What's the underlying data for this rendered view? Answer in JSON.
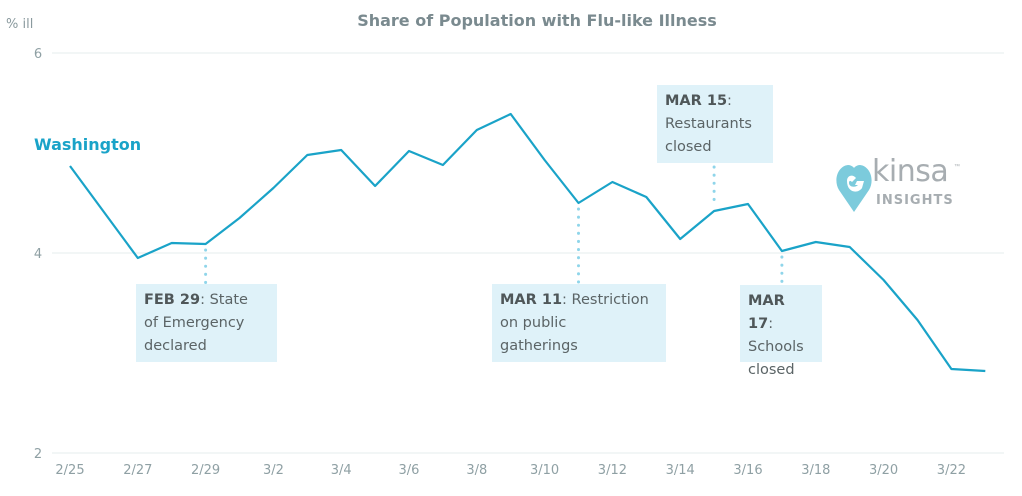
{
  "chart_data": {
    "type": "line",
    "title": "Share of Population with Flu-like Illness",
    "ylabel": "% ill",
    "xlabel": "",
    "ylim": [
      2,
      6
    ],
    "yticks": [
      2,
      4,
      6
    ],
    "grid": true,
    "x": [
      "2/25",
      "2/26",
      "2/27",
      "2/28",
      "2/29",
      "3/1",
      "3/2",
      "3/3",
      "3/4",
      "3/5",
      "3/6",
      "3/7",
      "3/8",
      "3/9",
      "3/10",
      "3/11",
      "3/12",
      "3/13",
      "3/14",
      "3/15",
      "3/16",
      "3/17",
      "3/18",
      "3/19",
      "3/20",
      "3/21",
      "3/22",
      "3/23"
    ],
    "xtick_labels": [
      "2/25",
      "2/27",
      "2/29",
      "3/2",
      "3/4",
      "3/6",
      "3/8",
      "3/10",
      "3/12",
      "3/14",
      "3/16",
      "3/18",
      "3/20",
      "3/22"
    ],
    "series": [
      {
        "name": "Washington",
        "color": "#1aa3c8",
        "values": [
          4.87,
          4.41,
          3.95,
          4.1,
          4.09,
          4.35,
          4.65,
          4.98,
          5.03,
          4.67,
          5.02,
          4.88,
          5.23,
          5.39,
          4.93,
          4.5,
          4.71,
          4.56,
          4.14,
          4.42,
          4.49,
          4.02,
          4.11,
          4.06,
          3.73,
          3.33,
          2.84,
          2.82
        ]
      }
    ],
    "annotations": [
      {
        "date": "2/29",
        "bold": "FEB 29",
        "text": ": State",
        "lines": [
          "of Emergency",
          "declared"
        ],
        "position": "below"
      },
      {
        "date": "3/11",
        "bold": "MAR 11",
        "text": ": Restriction",
        "lines": [
          "on public",
          "gatherings"
        ],
        "position": "below"
      },
      {
        "date": "3/15",
        "bold": "MAR 15",
        "text": ":",
        "lines": [
          "Restaurants",
          "closed"
        ],
        "position": "above"
      },
      {
        "date": "3/17",
        "bold": "MAR 17",
        "text": ":",
        "lines": [
          "Schools",
          "closed"
        ],
        "position": "below"
      }
    ],
    "annotation_color": "#dff2f9",
    "legend": "series label at top-left"
  },
  "logo": {
    "word": "kinsa",
    "sub": "INSIGHTS",
    "tm": "™",
    "color": "#7ccbdc"
  }
}
